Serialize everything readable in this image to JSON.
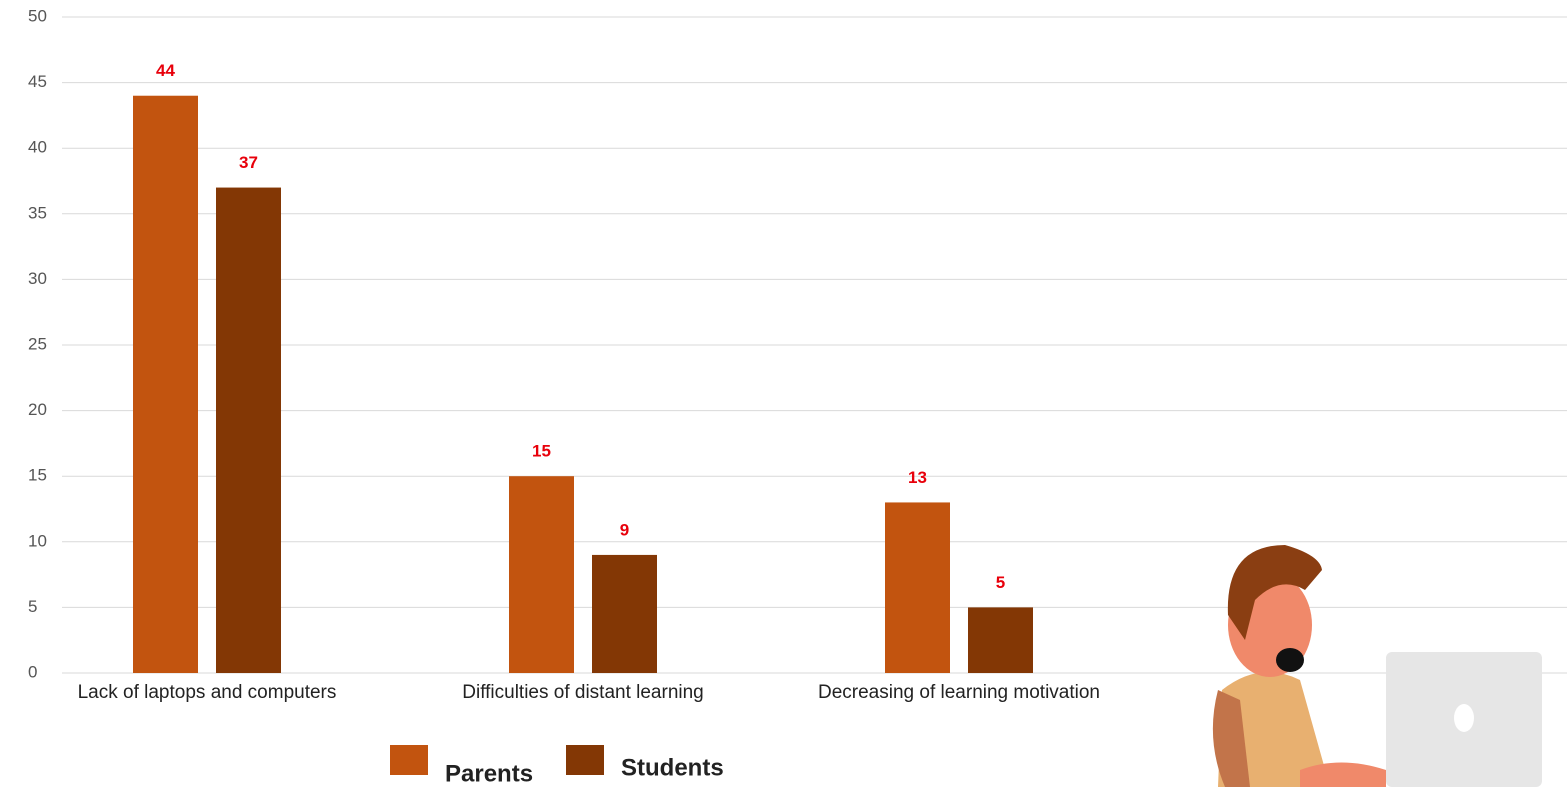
{
  "chart_data": {
    "type": "bar",
    "categories": [
      "Lack of laptops and computers",
      "Difficulties of distant learning",
      "Decreasing of learning motivation"
    ],
    "series": [
      {
        "name": "Parents",
        "color": "#c2540f",
        "values": [
          44,
          15,
          13
        ]
      },
      {
        "name": "Students",
        "color": "#833705",
        "values": [
          37,
          9,
          5
        ]
      }
    ],
    "ylim": [
      0,
      50
    ],
    "yticks": [
      0,
      5,
      10,
      15,
      20,
      25,
      30,
      35,
      40,
      45,
      50
    ],
    "grid": true,
    "legend": "bottom"
  }
}
